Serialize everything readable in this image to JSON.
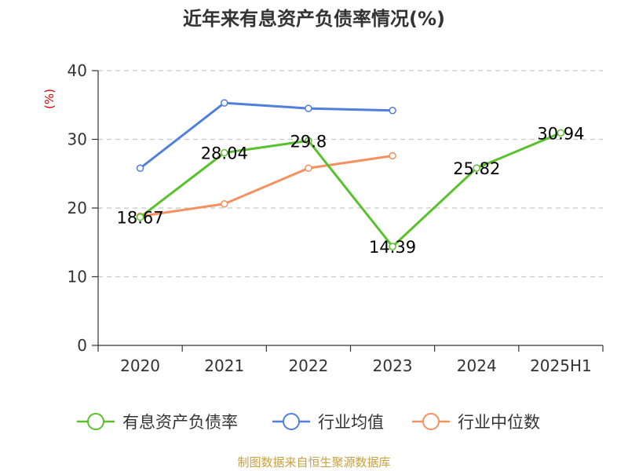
{
  "title": "近年来有息资产负债率情况(%)",
  "source": "制图数据来自恒生聚源数据库",
  "chart_data": {
    "type": "line",
    "title": "近年来有息资产负债率情况(%)",
    "ylabel": "(%)",
    "xlabel": "",
    "ylim": [
      0,
      40
    ],
    "yticks": [
      0,
      10,
      20,
      30,
      40
    ],
    "grid": true,
    "legend_position": "bottom",
    "categories": [
      "2020",
      "2021",
      "2022",
      "2023",
      "2024",
      "2025H1"
    ],
    "series": [
      {
        "name": "有息资产负债率",
        "color": "#5ac12e",
        "values": [
          18.67,
          28.04,
          29.8,
          14.39,
          25.82,
          30.94
        ],
        "labels": [
          "18.67",
          "28.04",
          "29.8",
          "14.39",
          "25.82",
          "30.94"
        ]
      },
      {
        "name": "行业均值",
        "color": "#4f7fdc",
        "values": [
          25.8,
          35.3,
          34.5,
          34.2,
          null,
          null
        ]
      },
      {
        "name": "行业中位数",
        "color": "#f59160",
        "values": [
          18.8,
          20.6,
          25.8,
          27.6,
          null,
          null
        ]
      }
    ]
  }
}
